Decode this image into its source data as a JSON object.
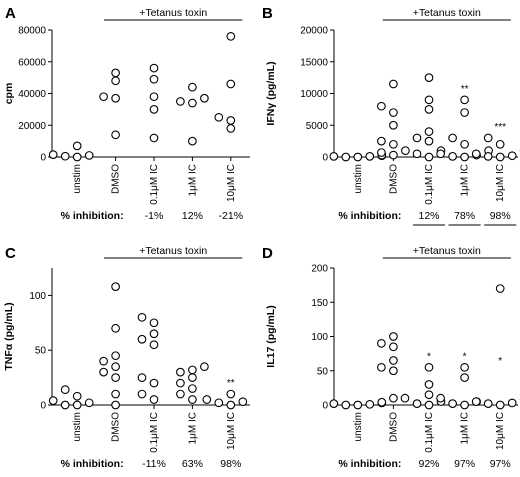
{
  "chart_data": [
    {
      "type": "scatter",
      "panel": "A",
      "ylabel": "cpm",
      "ylim": [
        0,
        80000
      ],
      "yticks": [
        "0",
        "20000",
        "40000",
        "60000",
        "80000"
      ],
      "ytick_values": [
        0,
        20000,
        40000,
        60000,
        80000
      ],
      "categories": [
        "unstim",
        "DMSO",
        "0.1μM IC",
        "1μM IC",
        "10μM IC"
      ],
      "bracket_label": "+Tetanus toxin",
      "inhibition_label": "% inhibition:",
      "inhibition": [
        "-1%",
        "12%",
        "-21%"
      ],
      "inhibition_underline": false,
      "significance": [
        "",
        "",
        "",
        "",
        ""
      ],
      "points": [
        [
          1500,
          500,
          0,
          1000,
          7000
        ],
        [
          14000,
          37000,
          38000,
          48000,
          53000
        ],
        [
          12000,
          30000,
          38000,
          49000,
          56000
        ],
        [
          10000,
          34000,
          35000,
          37000,
          44000
        ],
        [
          18000,
          23000,
          25000,
          46000,
          76000
        ]
      ]
    },
    {
      "type": "scatter",
      "panel": "B",
      "ylabel": "IFNγ (pg/mL)",
      "ylim": [
        0,
        20000
      ],
      "yticks": [
        "0",
        "5000",
        "10000",
        "15000",
        "20000"
      ],
      "ytick_values": [
        0,
        5000,
        10000,
        15000,
        20000
      ],
      "categories": [
        "unstim",
        "DMSO",
        "0.1μM IC",
        "1μM IC",
        "10μM IC"
      ],
      "bracket_label": "+Tetanus toxin",
      "inhibition_label": "% inhibition:",
      "inhibition": [
        "12%",
        "78%",
        "98%"
      ],
      "inhibition_underline": true,
      "significance": [
        "",
        "",
        "",
        "**",
        "***"
      ],
      "points": [
        [
          0,
          100,
          200,
          300,
          0,
          100
        ],
        [
          300,
          700,
          1000,
          2000,
          2500,
          5000,
          7000,
          8000,
          11500
        ],
        [
          0,
          500,
          1000,
          2500,
          3000,
          4000,
          7500,
          9000,
          12500
        ],
        [
          0,
          100,
          300,
          500,
          1000,
          2000,
          3000,
          7000,
          9000
        ],
        [
          0,
          100,
          200,
          500,
          1000,
          2000,
          3000
        ]
      ]
    },
    {
      "type": "scatter",
      "panel": "C",
      "ylabel": "TNFα (pg/mL)",
      "ylim": [
        0,
        125
      ],
      "yticks": [
        "0",
        "50",
        "100"
      ],
      "ytick_values": [
        0,
        50,
        100
      ],
      "categories": [
        "unstim",
        "DMSO",
        "0.1μM IC",
        "1μM IC",
        "10μM IC"
      ],
      "bracket_label": "+Tetanus toxin",
      "inhibition_label": "% inhibition:",
      "inhibition": [
        "-11%",
        "63%",
        "98%"
      ],
      "inhibition_underline": false,
      "significance": [
        "",
        "",
        "",
        "",
        "**"
      ],
      "points": [
        [
          0,
          2,
          4,
          8,
          14,
          0
        ],
        [
          0,
          10,
          25,
          30,
          35,
          40,
          45,
          70,
          108
        ],
        [
          5,
          10,
          20,
          25,
          55,
          60,
          65,
          75,
          80
        ],
        [
          5,
          10,
          15,
          20,
          25,
          30,
          32,
          35
        ],
        [
          0,
          2,
          3,
          5,
          10
        ]
      ]
    },
    {
      "type": "scatter",
      "panel": "D",
      "ylabel": "IL17 (pg/mL)",
      "ylim": [
        0,
        200
      ],
      "yticks": [
        "0",
        "50",
        "100",
        "150",
        "200"
      ],
      "ytick_values": [
        0,
        50,
        100,
        150,
        200
      ],
      "categories": [
        "unstim",
        "DMSO",
        "0.1μM IC",
        "1μM IC",
        "10μM IC"
      ],
      "bracket_label": "+Tetanus toxin",
      "inhibition_label": "% inhibition:",
      "inhibition": [
        "92%",
        "97%",
        "97%"
      ],
      "inhibition_underline": false,
      "significance": [
        "",
        "",
        "*",
        "*",
        "*"
      ],
      "points": [
        [
          0,
          1,
          2,
          3,
          4,
          0
        ],
        [
          10,
          50,
          55,
          65,
          85,
          90,
          100
        ],
        [
          0,
          2,
          5,
          10,
          15,
          30,
          55
        ],
        [
          0,
          2,
          5,
          10,
          40,
          55
        ],
        [
          0,
          2,
          3,
          5,
          8,
          170
        ]
      ]
    }
  ]
}
